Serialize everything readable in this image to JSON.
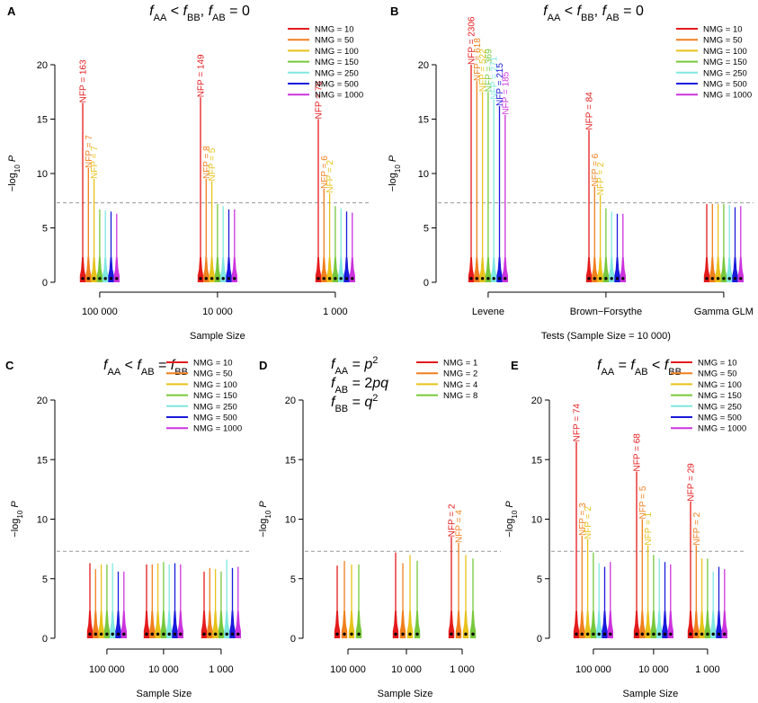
{
  "palette": {
    "NMG = 10": "#e41a1c",
    "NMG = 50": "#f07f1e",
    "NMG = 100": "#e8c21a",
    "NMG = 150": "#77c83c",
    "NMG = 250": "#7fe8e0",
    "NMG = 500": "#1a1adc",
    "NMG = 1000": "#cc33dd",
    "NMG = 1": "#e41a1c",
    "NMG = 2": "#f07f1e",
    "NMG = 4": "#e8c21a",
    "NMG = 8": "#77c83c"
  },
  "chart_data": [
    {
      "panel": "A",
      "type": "boxplot-spike",
      "title_parts": [
        [
          "f",
          "i"
        ],
        [
          "AA",
          "sub"
        ],
        [
          " < ",
          ""
        ],
        [
          "f",
          "i"
        ],
        [
          "BB",
          "sub"
        ],
        [
          ", ",
          ""
        ],
        [
          "f",
          "i"
        ],
        [
          "AB",
          "sub"
        ],
        [
          " = 0",
          ""
        ]
      ],
      "xlabel": "Sample Size",
      "ylabel": "−log10 P",
      "ylim": [
        0,
        20
      ],
      "yticks": [
        0,
        5,
        10,
        15,
        20
      ],
      "threshold": 7.3,
      "legend": [
        "NMG = 10",
        "NMG = 50",
        "NMG = 100",
        "NMG = 150",
        "NMG = 250",
        "NMG = 500",
        "NMG = 1000"
      ],
      "groups": [
        {
          "label": "100 000",
          "max": [
            16.5,
            10.5,
            9.5,
            6.7,
            6.6,
            6.5,
            6.3
          ],
          "annotations": [
            {
              "series": 0,
              "text": "NFP = 163"
            },
            {
              "series": 1,
              "text": "NFP = 7"
            },
            {
              "series": 2,
              "text": "NFP = 7"
            }
          ]
        },
        {
          "label": "10 000",
          "max": [
            17.0,
            9.5,
            9.3,
            7.2,
            7.0,
            6.7,
            6.7
          ],
          "annotations": [
            {
              "series": 0,
              "text": "NFP = 149"
            },
            {
              "series": 1,
              "text": "NFP = 8"
            },
            {
              "series": 2,
              "text": "NFP = 5"
            }
          ]
        },
        {
          "label": "1 000",
          "max": [
            15.0,
            8.6,
            8.2,
            7.0,
            6.8,
            6.5,
            6.4
          ],
          "annotations": [
            {
              "series": 0,
              "text": "NFP = 76"
            },
            {
              "series": 1,
              "text": "NFP = 6"
            },
            {
              "series": 2,
              "text": "NFP = 2"
            }
          ]
        }
      ]
    },
    {
      "panel": "B",
      "type": "boxplot-spike",
      "title_parts": [
        [
          "f",
          "i"
        ],
        [
          "AA",
          "sub"
        ],
        [
          " < ",
          ""
        ],
        [
          "f",
          "i"
        ],
        [
          "BB",
          "sub"
        ],
        [
          ", ",
          ""
        ],
        [
          "f",
          "i"
        ],
        [
          "AB",
          "sub"
        ],
        [
          " = 0",
          ""
        ]
      ],
      "xlabel": "Tests (Sample Size = 10 000)",
      "ylabel": "−log10 P",
      "ylim": [
        0,
        20
      ],
      "yticks": [
        0,
        5,
        10,
        15,
        20
      ],
      "threshold": 7.3,
      "legend": [
        "NMG = 10",
        "NMG = 50",
        "NMG = 100",
        "NMG = 150",
        "NMG = 250",
        "NMG = 500",
        "NMG = 1000"
      ],
      "groups": [
        {
          "label": "Levene",
          "max": [
            20.0,
            18.5,
            17.5,
            17.5,
            16.8,
            16.2,
            15.4
          ],
          "annotations": [
            {
              "series": 0,
              "text": "NFP = 2306"
            },
            {
              "series": 1,
              "text": "NFP = 618"
            },
            {
              "series": 2,
              "text": "NFP = 522"
            },
            {
              "series": 3,
              "text": "NFP = 369"
            },
            {
              "series": 4,
              "text": "NFP = 271"
            },
            {
              "series": 5,
              "text": "NFP = 215"
            },
            {
              "series": 6,
              "text": "NFP = 185"
            }
          ]
        },
        {
          "label": "Brown−Forsythe",
          "max": [
            14.0,
            8.8,
            8.0,
            6.8,
            6.5,
            6.3,
            6.3
          ],
          "annotations": [
            {
              "series": 0,
              "text": "NFP = 84"
            },
            {
              "series": 1,
              "text": "NFP = 6"
            },
            {
              "series": 2,
              "text": "NFP = 2"
            }
          ]
        },
        {
          "label": "Gamma GLM",
          "max": [
            7.2,
            7.2,
            7.2,
            7.2,
            7.1,
            6.9,
            7.0
          ],
          "annotations": []
        }
      ]
    },
    {
      "panel": "C",
      "type": "boxplot-spike",
      "title_parts": [
        [
          "f",
          "i"
        ],
        [
          "AA",
          "sub"
        ],
        [
          " < ",
          ""
        ],
        [
          "f",
          "i"
        ],
        [
          "AB",
          "sub"
        ],
        [
          " = ",
          ""
        ],
        [
          "f",
          "i"
        ],
        [
          "BB",
          "sub"
        ]
      ],
      "xlabel": "Sample Size",
      "ylabel": "−log10 P",
      "ylim": [
        0,
        20
      ],
      "yticks": [
        0,
        5,
        10,
        15,
        20
      ],
      "threshold": 7.3,
      "legend": [
        "NMG = 10",
        "NMG = 50",
        "NMG = 100",
        "NMG = 150",
        "NMG = 250",
        "NMG = 500",
        "NMG = 1000"
      ],
      "groups": [
        {
          "label": "100 000",
          "max": [
            6.3,
            5.8,
            6.2,
            6.2,
            6.3,
            5.6,
            5.6
          ],
          "annotations": []
        },
        {
          "label": "10 000",
          "max": [
            6.2,
            6.2,
            6.3,
            6.4,
            6.2,
            6.3,
            6.2
          ],
          "annotations": []
        },
        {
          "label": "1 000",
          "max": [
            5.6,
            5.9,
            5.8,
            5.6,
            6.6,
            5.9,
            6.0
          ],
          "annotations": []
        }
      ]
    },
    {
      "panel": "D",
      "type": "boxplot-spike",
      "title_lines": [
        [
          [
            "f",
            "i"
          ],
          [
            "AA",
            "sub"
          ],
          [
            " = ",
            ""
          ],
          [
            "p",
            "i"
          ],
          [
            "2",
            "sup"
          ]
        ],
        [
          [
            "f",
            "i"
          ],
          [
            "AB",
            "sub"
          ],
          [
            " = 2",
            ""
          ],
          [
            "pq",
            "i"
          ]
        ],
        [
          [
            "f",
            "i"
          ],
          [
            "BB",
            "sub"
          ],
          [
            " = ",
            ""
          ],
          [
            "q",
            "i"
          ],
          [
            "2",
            "sup"
          ]
        ]
      ],
      "xlabel": "Sample Size",
      "ylabel": "−log10 P",
      "ylim": [
        0,
        20
      ],
      "yticks": [
        0,
        5,
        10,
        15,
        20
      ],
      "threshold": 7.3,
      "legend": [
        "NMG = 1",
        "NMG = 2",
        "NMG = 4",
        "NMG = 8"
      ],
      "groups": [
        {
          "label": "100 000",
          "max": [
            6.1,
            6.5,
            6.2,
            6.2
          ],
          "annotations": []
        },
        {
          "label": "10 000",
          "max": [
            7.2,
            6.3,
            7.0,
            6.5
          ],
          "annotations": []
        },
        {
          "label": "1 000",
          "max": [
            8.5,
            8.0,
            7.0,
            6.7
          ],
          "annotations": [
            {
              "series": 0,
              "text": "NFP = 2"
            },
            {
              "series": 1,
              "text": "NFP = 4"
            }
          ]
        }
      ]
    },
    {
      "panel": "E",
      "type": "boxplot-spike",
      "title_parts": [
        [
          "f",
          "i"
        ],
        [
          "AA",
          "sub"
        ],
        [
          " = ",
          ""
        ],
        [
          "f",
          "i"
        ],
        [
          "AB",
          "sub"
        ],
        [
          " < ",
          ""
        ],
        [
          "f",
          "i"
        ],
        [
          "BB",
          "sub"
        ]
      ],
      "xlabel": "Sample Size",
      "ylabel": "−log10 P",
      "ylim": [
        0,
        20
      ],
      "yticks": [
        0,
        5,
        10,
        15,
        20
      ],
      "threshold": 7.3,
      "legend": [
        "NMG = 10",
        "NMG = 50",
        "NMG = 100",
        "NMG = 150",
        "NMG = 250",
        "NMG = 500",
        "NMG = 1000"
      ],
      "groups": [
        {
          "label": "100 000",
          "max": [
            16.5,
            8.6,
            8.3,
            7.2,
            6.3,
            6.0,
            6.4
          ],
          "annotations": [
            {
              "series": 0,
              "text": "NFP = 74"
            },
            {
              "series": 1,
              "text": "NFP = 3"
            },
            {
              "series": 2,
              "text": "NFP = 2"
            }
          ]
        },
        {
          "label": "10 000",
          "max": [
            14.0,
            10.0,
            7.8,
            7.0,
            6.7,
            6.4,
            6.2
          ],
          "annotations": [
            {
              "series": 0,
              "text": "NFP = 68"
            },
            {
              "series": 1,
              "text": "NFP = 5"
            },
            {
              "series": 2,
              "text": "NFP = 1"
            }
          ]
        },
        {
          "label": "1 000",
          "max": [
            11.5,
            7.8,
            6.7,
            6.7,
            5.6,
            6.0,
            5.8
          ],
          "annotations": [
            {
              "series": 0,
              "text": "NFP = 29"
            },
            {
              "series": 1,
              "text": "NFP = 2"
            }
          ]
        }
      ]
    }
  ]
}
